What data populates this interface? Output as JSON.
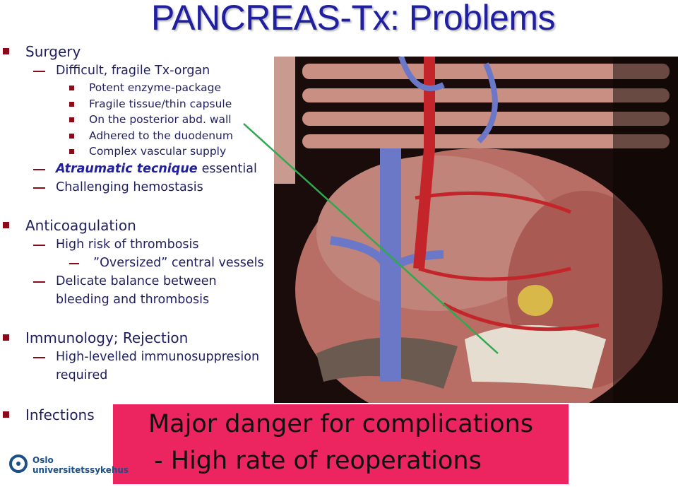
{
  "title": "PANCREAS-Tx: Problems",
  "sections": [
    {
      "heading": "Surgery",
      "items": [
        {
          "text": "Difficult, fragile Tx-organ",
          "subitems": [
            "Potent enzyme-package",
            "Fragile tissue/thin capsule",
            "On the posterior abd. wall",
            "Adhered to the duodenum",
            "Complex vascular supply"
          ]
        },
        {
          "emphasis": "Atraumatic tecnique",
          "text": "essential"
        },
        {
          "text": "Challenging hemostasis"
        }
      ]
    },
    {
      "heading": "Anticoagulation",
      "items": [
        {
          "text": "High risk of thrombosis",
          "dashitems": [
            "”Oversized” central vessels"
          ]
        },
        {
          "text": "Delicate balance between bleeding and thrombosis"
        }
      ]
    },
    {
      "heading": "Immunology; Rejection",
      "items": [
        {
          "text": "High-levelled immunosuppresion required"
        }
      ]
    },
    {
      "heading": "Infections",
      "items": []
    }
  ],
  "callout": {
    "lines": [
      "Major danger for complications",
      "- High rate of reoperations"
    ]
  },
  "logo": {
    "lines": [
      "Oslo",
      "universitetssykehus"
    ]
  }
}
